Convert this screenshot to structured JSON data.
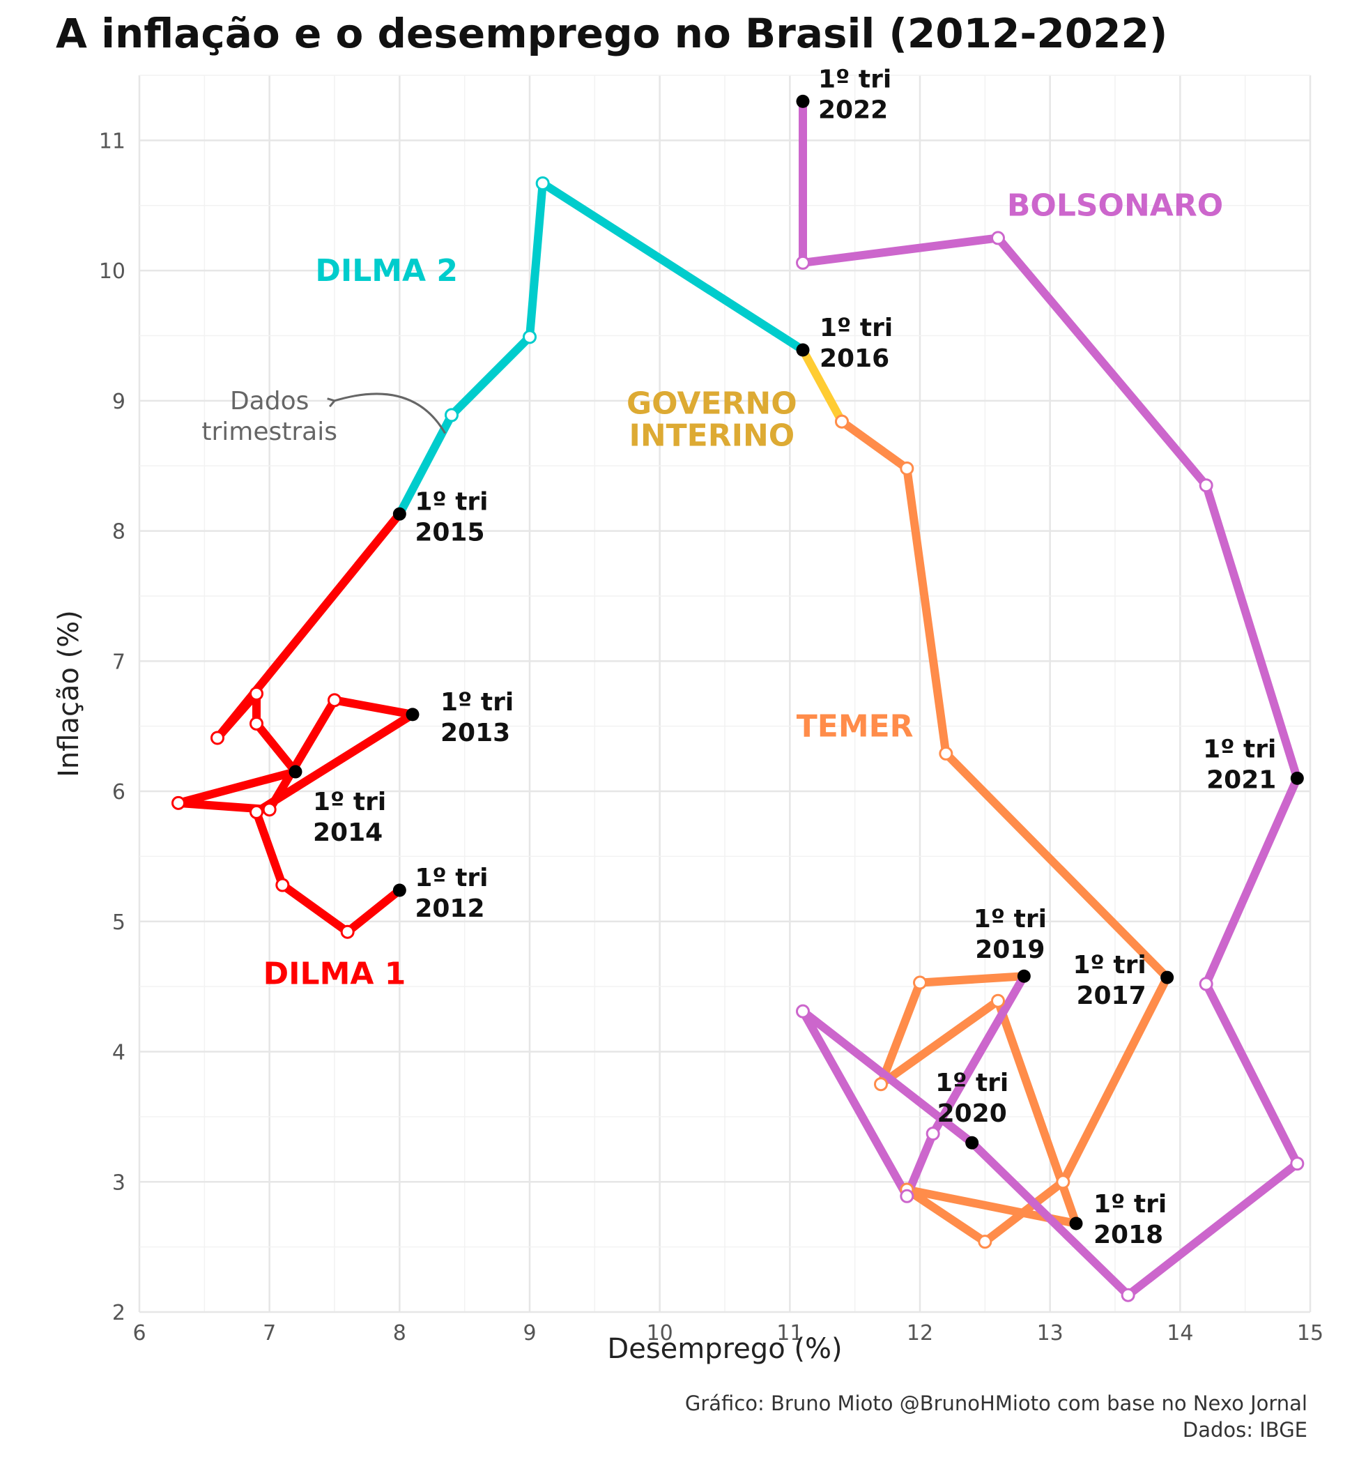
{
  "title": "A inflação e o desemprego no Brasil (2012-2022)",
  "caption": {
    "line1": "Gráfico: Bruno Mioto @BrunoHMioto com base no Nexo Jornal",
    "line2": "Dados: IBGE"
  },
  "chart_data": {
    "type": "line",
    "xlabel": "Desemprego (%)",
    "ylabel": "Inflação (%)",
    "xlim": [
      6,
      15
    ],
    "ylim": [
      2,
      11.5
    ],
    "xticks": [
      6,
      7,
      8,
      9,
      10,
      11,
      12,
      13,
      14,
      15
    ],
    "yticks": [
      2,
      3,
      4,
      5,
      6,
      7,
      8,
      9,
      10,
      11
    ],
    "grid": true,
    "series": [
      {
        "name": "DILMA 1",
        "color": "#ff0000",
        "points": [
          {
            "x": 8.0,
            "y": 5.24
          },
          {
            "x": 7.6,
            "y": 4.92
          },
          {
            "x": 7.1,
            "y": 5.28
          },
          {
            "x": 6.9,
            "y": 5.84
          },
          {
            "x": 8.1,
            "y": 6.59
          },
          {
            "x": 7.5,
            "y": 6.7
          },
          {
            "x": 7.0,
            "y": 5.86
          },
          {
            "x": 6.3,
            "y": 5.91
          },
          {
            "x": 7.2,
            "y": 6.15
          },
          {
            "x": 6.9,
            "y": 6.52
          },
          {
            "x": 6.9,
            "y": 6.75
          },
          {
            "x": 6.6,
            "y": 6.41
          },
          {
            "x": 8.0,
            "y": 8.13
          }
        ]
      },
      {
        "name": "DILMA 2",
        "color": "#00cccc",
        "points": [
          {
            "x": 8.0,
            "y": 8.13
          },
          {
            "x": 8.4,
            "y": 8.89
          },
          {
            "x": 9.0,
            "y": 9.49
          },
          {
            "x": 9.1,
            "y": 10.67
          },
          {
            "x": 11.1,
            "y": 9.39
          }
        ]
      },
      {
        "name": "GOVERNO INTERINO",
        "color": "#ffcc33",
        "points": [
          {
            "x": 11.1,
            "y": 9.39
          },
          {
            "x": 11.4,
            "y": 8.84
          }
        ]
      },
      {
        "name": "TEMER",
        "color": "#ff8c4a",
        "points": [
          {
            "x": 11.4,
            "y": 8.84
          },
          {
            "x": 11.9,
            "y": 8.48
          },
          {
            "x": 12.2,
            "y": 6.29
          },
          {
            "x": 13.9,
            "y": 4.57
          },
          {
            "x": 13.1,
            "y": 3.0
          },
          {
            "x": 12.5,
            "y": 2.54
          },
          {
            "x": 11.9,
            "y": 2.94
          },
          {
            "x": 13.2,
            "y": 2.68
          },
          {
            "x": 12.6,
            "y": 4.39
          },
          {
            "x": 11.7,
            "y": 3.75
          },
          {
            "x": 12.0,
            "y": 4.53
          },
          {
            "x": 12.8,
            "y": 4.58
          }
        ]
      },
      {
        "name": "BOLSONARO",
        "color": "#cc66cc",
        "points": [
          {
            "x": 12.8,
            "y": 4.58
          },
          {
            "x": 12.1,
            "y": 3.37
          },
          {
            "x": 11.9,
            "y": 2.89
          },
          {
            "x": 11.1,
            "y": 4.31
          },
          {
            "x": 12.4,
            "y": 3.3
          },
          {
            "x": 13.6,
            "y": 2.13
          },
          {
            "x": 14.9,
            "y": 3.14
          },
          {
            "x": 14.2,
            "y": 4.52
          },
          {
            "x": 14.9,
            "y": 6.1
          },
          {
            "x": 14.2,
            "y": 8.35
          },
          {
            "x": 12.6,
            "y": 10.25
          },
          {
            "x": 11.1,
            "y": 10.06
          },
          {
            "x": 11.1,
            "y": 11.3
          }
        ]
      }
    ],
    "highlight_points": [
      {
        "x": 8.0,
        "y": 5.24,
        "label1": "1º tri",
        "label2": "2012"
      },
      {
        "x": 8.1,
        "y": 6.59,
        "label1": "1º tri",
        "label2": "2013"
      },
      {
        "x": 7.2,
        "y": 6.15,
        "label1": "1º tri",
        "label2": "2014"
      },
      {
        "x": 8.0,
        "y": 8.13,
        "label1": "1º tri",
        "label2": "2015"
      },
      {
        "x": 11.1,
        "y": 9.39,
        "label1": "1º tri",
        "label2": "2016"
      },
      {
        "x": 13.9,
        "y": 4.57,
        "label1": "1º tri",
        "label2": "2017"
      },
      {
        "x": 13.2,
        "y": 2.68,
        "label1": "1º tri",
        "label2": "2018"
      },
      {
        "x": 12.8,
        "y": 4.58,
        "label1": "1º tri",
        "label2": "2019"
      },
      {
        "x": 12.4,
        "y": 3.3,
        "label1": "1º tri",
        "label2": "2020"
      },
      {
        "x": 14.9,
        "y": 6.1,
        "label1": "1º tri",
        "label2": "2021"
      },
      {
        "x": 11.1,
        "y": 11.3,
        "label1": "1º tri",
        "label2": "2022"
      }
    ],
    "government_labels": [
      {
        "lines": [
          "DILMA 1"
        ],
        "color": "#ff0000",
        "x": 7.5,
        "y": 4.6
      },
      {
        "lines": [
          "DILMA 2"
        ],
        "color": "#00cccc",
        "x": 7.9,
        "y": 10.0
      },
      {
        "lines": [
          "GOVERNO",
          "INTERINO"
        ],
        "color": "#ddaa33",
        "x": 10.4,
        "y": 8.98
      },
      {
        "lines": [
          "TEMER"
        ],
        "color": "#ff8c4a",
        "x": 11.5,
        "y": 6.5
      },
      {
        "lines": [
          "BOLSONARO"
        ],
        "color": "#cc66cc",
        "x": 13.5,
        "y": 10.5
      }
    ],
    "annotation": {
      "lines": [
        "Dados",
        "trimestrais"
      ],
      "x": 7.0,
      "y": 9.0
    }
  }
}
